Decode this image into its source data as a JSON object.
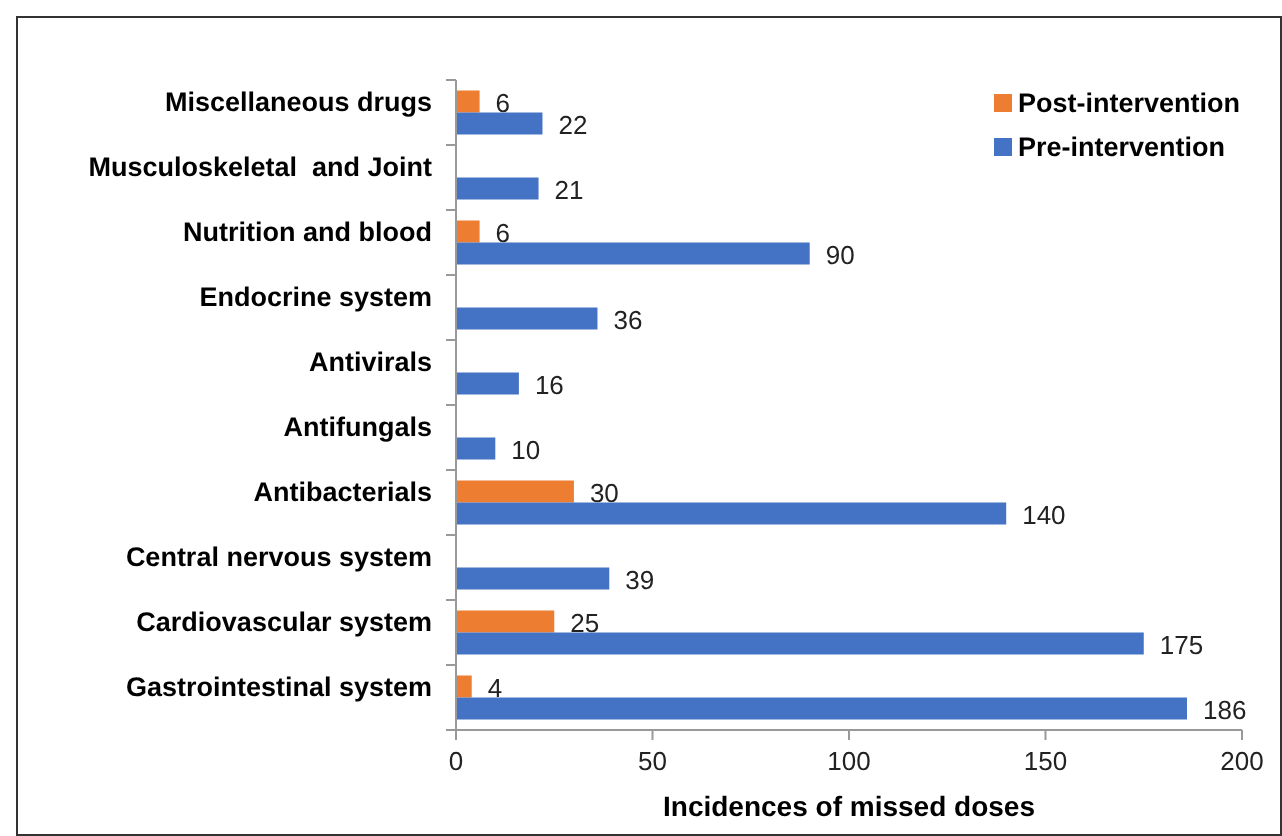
{
  "chart_data": {
    "type": "bar",
    "orientation": "horizontal",
    "xlabel": "Incidences of missed doses",
    "categories": [
      "Miscellaneous drugs",
      "Musculoskeletal  and Joint",
      "Nutrition and blood",
      "Endocrine system",
      "Antivirals",
      "Antifungals",
      "Antibacterials",
      "Central nervous system",
      "Cardiovascular system",
      "Gastrointestinal system"
    ],
    "series": [
      {
        "name": "Post-intervention",
        "color": "#ed7d31",
        "values": [
          6,
          null,
          6,
          null,
          null,
          null,
          30,
          null,
          25,
          4
        ]
      },
      {
        "name": "Pre-intervention",
        "color": "#4472c4",
        "values": [
          22,
          21,
          90,
          36,
          16,
          10,
          140,
          39,
          175,
          186
        ]
      }
    ],
    "xlim": [
      0,
      200
    ],
    "xticks": [
      0,
      50,
      100,
      150,
      200
    ],
    "grid": false,
    "legend": "top right",
    "data_labels": true
  }
}
